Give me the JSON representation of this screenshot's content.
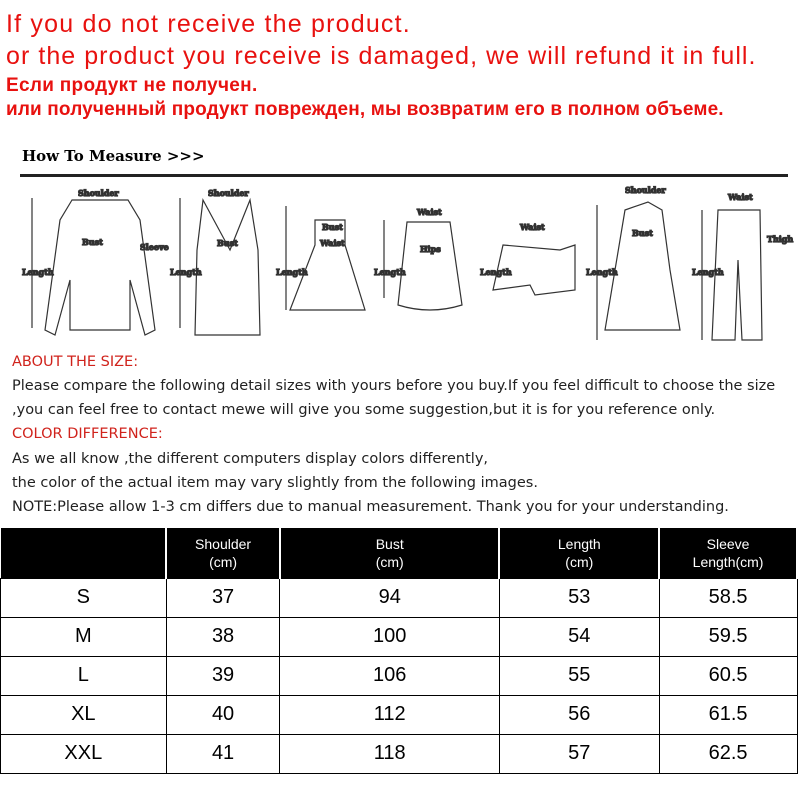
{
  "notice": {
    "line1": "If you do not receive the product.",
    "line2": "or the product you receive is damaged, we will refund it in full.",
    "line3": "Если продукт не получен.",
    "line4": "или полученный продукт поврежден, мы возвратим его в полном объеме."
  },
  "measure": {
    "title": "How To Measure >>>",
    "garments": [
      {
        "name": "blouse",
        "labels": [
          "Shoulder",
          "Bust",
          "Sleeve",
          "Length"
        ]
      },
      {
        "name": "top",
        "labels": [
          "Shoulder",
          "Bust",
          "Length"
        ]
      },
      {
        "name": "dress",
        "labels": [
          "Bust",
          "Waist",
          "Length"
        ]
      },
      {
        "name": "skirt",
        "labels": [
          "Waist",
          "Hips",
          "Length"
        ]
      },
      {
        "name": "shorts",
        "labels": [
          "Waist",
          "Length"
        ]
      },
      {
        "name": "coat",
        "labels": [
          "Shoulder",
          "Bust",
          "Length"
        ]
      },
      {
        "name": "pants",
        "labels": [
          "Waist",
          "Thigh",
          "Length"
        ]
      }
    ]
  },
  "info": {
    "about_heading": "ABOUT THE SIZE:",
    "about_1": "Please compare the following detail sizes with yours before you buy.If you feel difficult to choose the size",
    "about_2": ",you can feel free to contact mewe will give you some suggestion,but it is for you reference only.",
    "color_heading": "COLOR DIFFERENCE:",
    "color_1": "As we all know ,the different computers display colors differently,",
    "color_2": "the color of the actual item may vary slightly from the following images.",
    "note": "NOTE:Please allow 1-3 cm differs due to manual measurement. Thank you for your understanding."
  },
  "table": {
    "headers": [
      "",
      "Shoulder\n(cm)",
      "Bust\n(cm)",
      "Length\n(cm)",
      "Sleeve\nLength(cm)"
    ],
    "rows": [
      [
        "S",
        "37",
        "94",
        "53",
        "58.5"
      ],
      [
        "M",
        "38",
        "100",
        "54",
        "59.5"
      ],
      [
        "L",
        "39",
        "106",
        "55",
        "60.5"
      ],
      [
        "XL",
        "40",
        "112",
        "56",
        "61.5"
      ],
      [
        "XXL",
        "41",
        "118",
        "57",
        "62.5"
      ]
    ]
  },
  "colors": {
    "notice": "#e8110f",
    "heading": "#d0231c",
    "table_header": "#000000"
  }
}
